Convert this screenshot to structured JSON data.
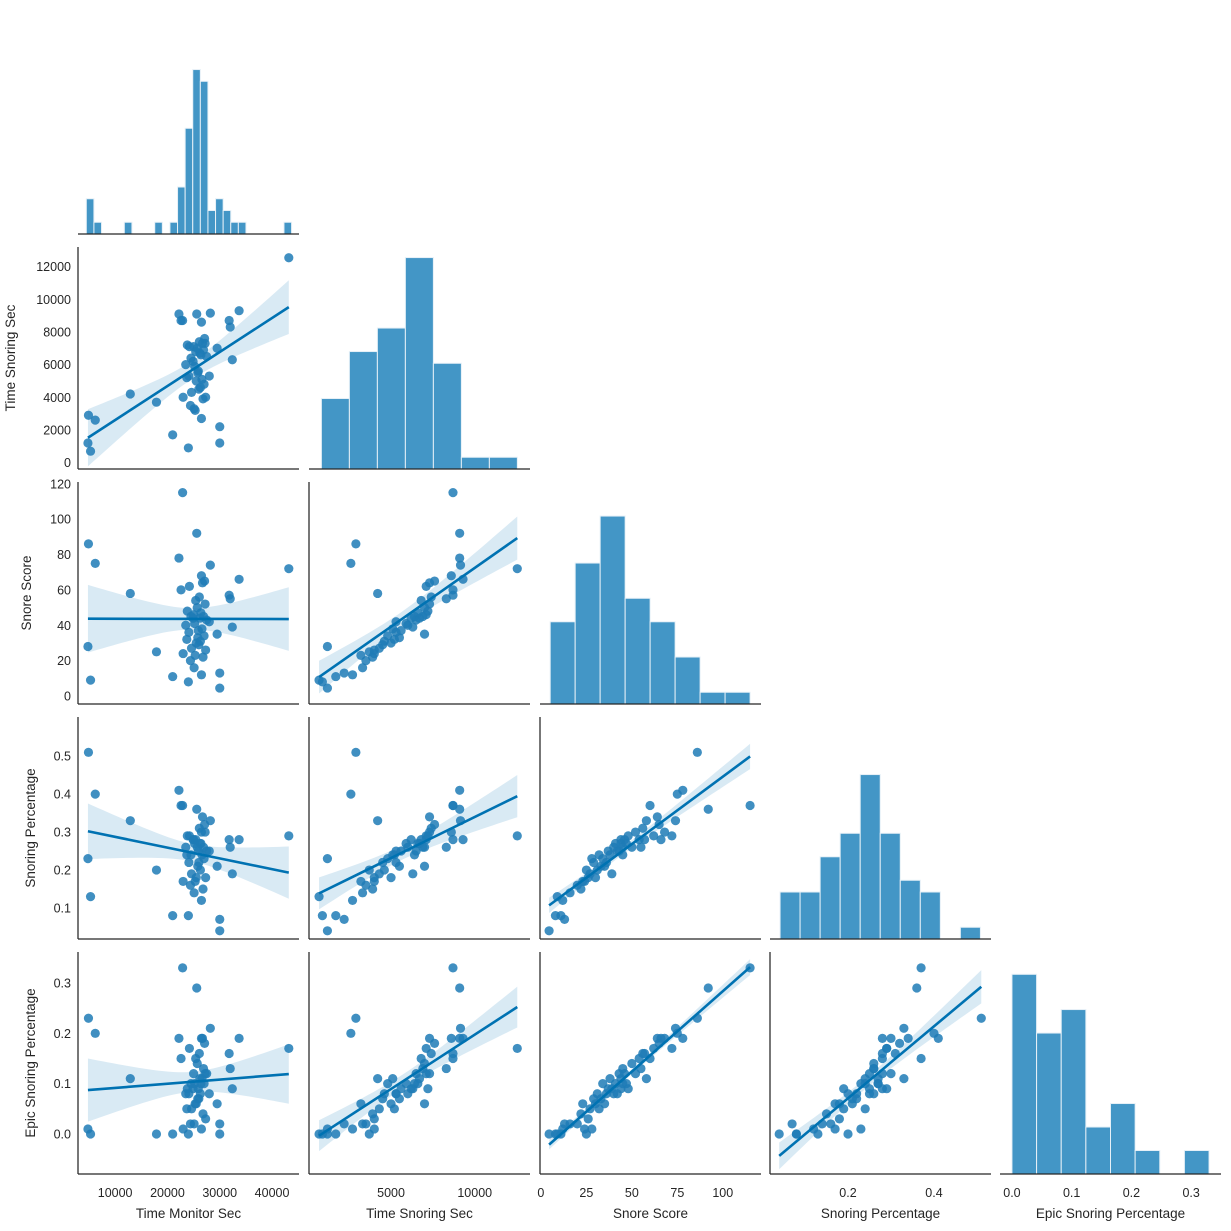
{
  "chart_data": {
    "type": "scatter",
    "kind": "pairplot-corner-regression",
    "variables": [
      "Time Monitor Sec",
      "Time Snoring Sec",
      "Snore Score",
      "Snoring Percentage",
      "Epic Snoring Percentage"
    ],
    "colors": {
      "points": "#1f7bb6",
      "regression_line": "#0072b2",
      "ci_band": "#0072b2",
      "histogram": "#4396c6",
      "spine": "#262626"
    },
    "grid": false,
    "legend": "none",
    "x_ranges": [
      [
        2900,
        45150
      ],
      [
        100,
        13300
      ],
      [
        -0.5,
        121
      ],
      [
        0.0186,
        0.5326
      ],
      [
        -0.02,
        0.35
      ]
    ],
    "y_ranges": [
      null,
      [
        -390,
        13200
      ],
      [
        -4.5,
        121
      ],
      [
        0.0184,
        0.603
      ],
      [
        -0.0795,
        0.3616
      ]
    ],
    "histogram_count_max": 18.9,
    "ticks": [
      {
        "values": [
          10000,
          20000,
          30000,
          40000
        ],
        "labels": [
          "10000",
          "20000",
          "30000",
          "40000"
        ]
      },
      {
        "values": [
          0,
          2000,
          4000,
          6000,
          8000,
          10000,
          12000
        ],
        "labels": [
          "0",
          "2000",
          "4000",
          "6000",
          "8000",
          "10000",
          "12000"
        ],
        "x_values": [
          5000,
          10000
        ],
        "x_labels": [
          "5000",
          "10000"
        ]
      },
      {
        "values": [
          0,
          20,
          40,
          60,
          80,
          100,
          120
        ],
        "labels": [
          "0",
          "20",
          "40",
          "60",
          "80",
          "100",
          "120"
        ],
        "x_values": [
          0,
          25,
          50,
          75,
          100
        ],
        "x_labels": [
          "0",
          "25",
          "50",
          "75",
          "100"
        ]
      },
      {
        "values": [
          0.1,
          0.2,
          0.3,
          0.4,
          0.5
        ],
        "labels": [
          "0.1",
          "0.2",
          "0.3",
          "0.4",
          "0.5"
        ],
        "x_values": [
          0.2,
          0.4
        ],
        "x_labels": [
          "0.2",
          "0.4"
        ]
      },
      {
        "values": [
          0.0,
          0.1,
          0.2,
          0.3
        ],
        "labels": [
          "0.0",
          "0.1",
          "0.2",
          "0.3"
        ],
        "x_values": [
          0.0,
          0.1,
          0.2,
          0.3
        ],
        "x_labels": [
          "0.0",
          "0.1",
          "0.2",
          "0.3"
        ]
      }
    ],
    "histograms": [
      {
        "variable": "Time Monitor Sec",
        "bin_range": [
          4490,
          43730
        ],
        "counts": [
          3,
          1,
          0,
          0,
          0,
          1,
          0,
          0,
          0,
          1,
          0,
          1,
          4,
          9,
          14,
          13,
          2,
          3,
          2,
          1,
          1,
          0,
          0,
          0,
          0,
          0,
          1
        ]
      },
      {
        "variable": "Time Snoring Sec",
        "bin_range": [
          840,
          12546
        ],
        "counts": [
          6,
          10,
          12,
          18,
          9,
          1,
          1
        ]
      },
      {
        "variable": "Snore Score",
        "bin_range": [
          5.1,
          115
        ],
        "counts": [
          7,
          12,
          16,
          9,
          7,
          4,
          1,
          1
        ]
      },
      {
        "variable": "Snoring Percentage",
        "bin_range": [
          0.042,
          0.508
        ],
        "counts": [
          4,
          4,
          7,
          9,
          14,
          9,
          5,
          4,
          0,
          1
        ]
      },
      {
        "variable": "Epic Snoring Percentage",
        "bin_range": [
          0.0,
          0.33
        ],
        "counts": [
          17,
          12,
          14,
          4,
          6,
          2,
          0,
          2
        ]
      }
    ],
    "samples": [
      [
        4900,
        2900,
        86,
        0.51,
        0.23
      ],
      [
        4800,
        1200,
        28,
        0.23,
        0.01
      ],
      [
        5300,
        700,
        9,
        0.13,
        0.0
      ],
      [
        6200,
        2600,
        75,
        0.4,
        0.2
      ],
      [
        12900,
        4200,
        58,
        0.33,
        0.11
      ],
      [
        17900,
        3700,
        25,
        0.2,
        0.0
      ],
      [
        21000,
        1700,
        11,
        0.08,
        0.0
      ],
      [
        43200,
        12540,
        72,
        0.29,
        0.17
      ],
      [
        22900,
        8700,
        115,
        0.37,
        0.33
      ],
      [
        25600,
        9100,
        92,
        0.36,
        0.29
      ],
      [
        30000,
        1200,
        4.5,
        0.04,
        0.0
      ],
      [
        30000,
        2200,
        13,
        0.07,
        0.02
      ],
      [
        33700,
        9300,
        66,
        0.28,
        0.19
      ],
      [
        31800,
        8700,
        57,
        0.28,
        0.16
      ],
      [
        32000,
        8300,
        55,
        0.26,
        0.13
      ],
      [
        32400,
        6300,
        39,
        0.19,
        0.09
      ],
      [
        29500,
        7000,
        35,
        0.21,
        0.06
      ],
      [
        28200,
        9150,
        74,
        0.33,
        0.21
      ],
      [
        28000,
        5300,
        42,
        0.25,
        0.08
      ],
      [
        22200,
        9100,
        78,
        0.41,
        0.19
      ],
      [
        22600,
        8700,
        60,
        0.37,
        0.15
      ],
      [
        23000,
        4000,
        24,
        0.17,
        0.01
      ],
      [
        24000,
        900,
        8,
        0.08,
        0.0
      ],
      [
        26500,
        2700,
        12,
        0.12,
        0.01
      ],
      [
        25100,
        3300,
        16,
        0.14,
        0.02
      ],
      [
        24400,
        3500,
        20,
        0.16,
        0.02
      ],
      [
        26800,
        3900,
        22,
        0.15,
        0.04
      ],
      [
        25300,
        3200,
        23,
        0.17,
        0.06
      ],
      [
        27300,
        4000,
        26,
        0.18,
        0.03
      ],
      [
        24600,
        4300,
        27,
        0.19,
        0.05
      ],
      [
        26000,
        4500,
        29,
        0.22,
        0.07
      ],
      [
        25500,
        5000,
        30,
        0.18,
        0.06
      ],
      [
        26300,
        4600,
        31,
        0.2,
        0.08
      ],
      [
        23700,
        5200,
        32,
        0.24,
        0.05
      ],
      [
        25800,
        5500,
        33,
        0.21,
        0.07
      ],
      [
        27000,
        4800,
        34,
        0.23,
        0.1
      ],
      [
        24100,
        5300,
        36,
        0.22,
        0.08
      ],
      [
        25900,
        5600,
        37,
        0.25,
        0.09
      ],
      [
        26600,
        5100,
        38,
        0.24,
        0.11
      ],
      [
        23500,
        6000,
        40,
        0.26,
        0.08
      ],
      [
        25200,
        5900,
        41,
        0.27,
        0.1
      ],
      [
        27500,
        6500,
        43,
        0.25,
        0.12
      ],
      [
        24900,
        6200,
        44,
        0.28,
        0.09
      ],
      [
        26200,
        6700,
        44,
        0.27,
        0.11
      ],
      [
        24500,
        6400,
        45,
        0.24,
        0.1
      ],
      [
        26900,
        6900,
        45,
        0.26,
        0.13
      ],
      [
        25000,
        7100,
        46,
        0.28,
        0.12
      ],
      [
        26400,
        6600,
        47,
        0.27,
        0.1
      ],
      [
        23800,
        7200,
        48,
        0.29,
        0.09
      ],
      [
        25700,
        7000,
        50,
        0.26,
        0.14
      ],
      [
        27200,
        7300,
        52,
        0.3,
        0.12
      ],
      [
        25400,
        6800,
        54,
        0.28,
        0.15
      ],
      [
        26100,
        7400,
        56,
        0.31,
        0.16
      ],
      [
        24200,
        7100,
        62,
        0.29,
        0.17
      ],
      [
        26700,
        7300,
        64,
        0.34,
        0.19
      ],
      [
        27100,
        7600,
        65,
        0.32,
        0.18
      ],
      [
        26500,
        8600,
        68,
        0.3,
        0.19
      ]
    ]
  }
}
